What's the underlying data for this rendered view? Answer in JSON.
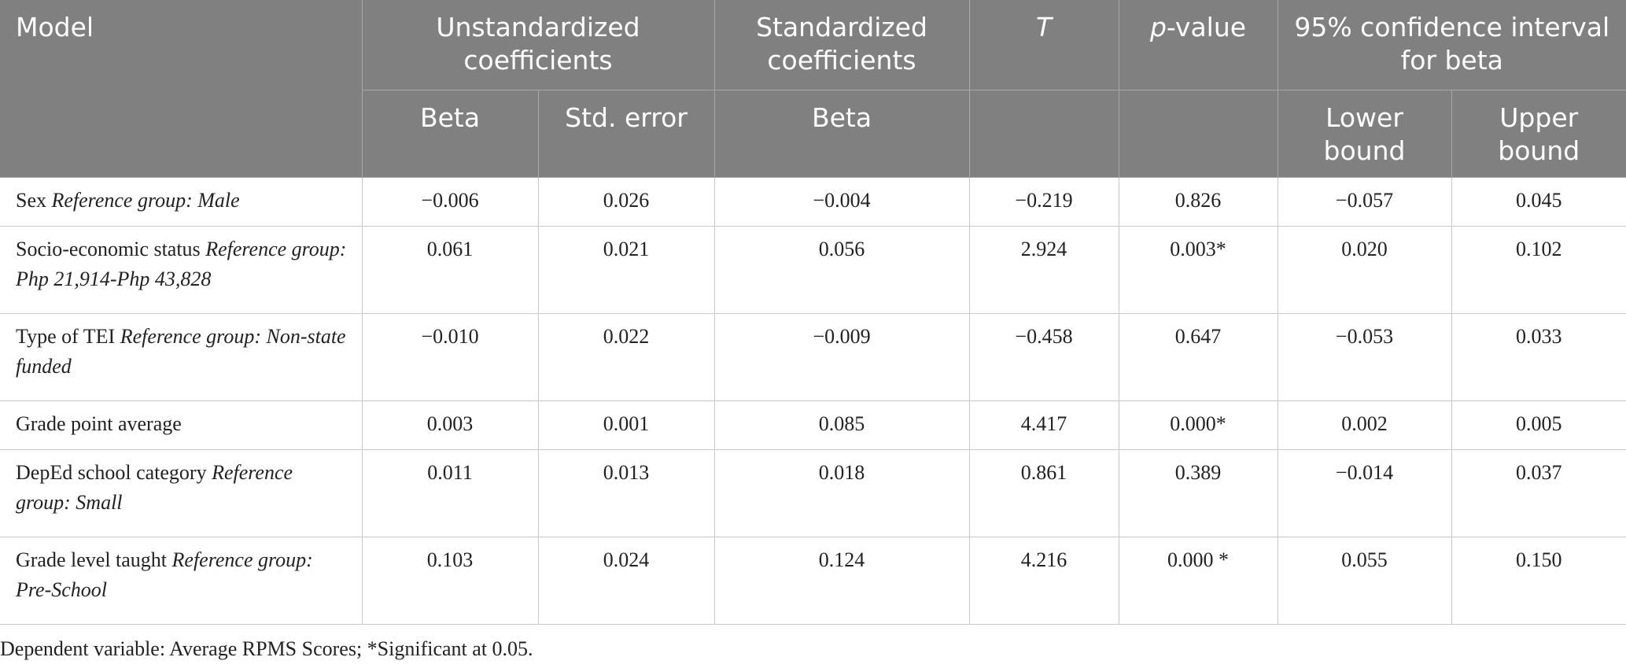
{
  "header": {
    "model": "Model",
    "unstandardized": "Unstandardized coefficients",
    "standardized": "Standardized coefficients",
    "t": "T",
    "p_italic": "p",
    "p_rest": "-value",
    "ci": "95% confidence interval for beta",
    "beta": "Beta",
    "std_error": "Std. error",
    "std_beta": "Beta",
    "lower": "Lower bound",
    "upper": "Upper bound"
  },
  "rows": [
    {
      "name": "Sex",
      "ref": "Reference group: Male",
      "b": "−0.006",
      "se": "0.026",
      "beta": "−0.004",
      "t": "−0.219",
      "p": "0.826",
      "lo": "−0.057",
      "hi": "0.045"
    },
    {
      "name": "Socio-economic status",
      "ref": "Reference group: Php 21,914-Php 43,828",
      "b": "0.061",
      "se": "0.021",
      "beta": "0.056",
      "t": "2.924",
      "p": "0.003*",
      "lo": "0.020",
      "hi": "0.102"
    },
    {
      "name": "Type of TEI",
      "ref": "Reference group: Non-state funded",
      "b": "−0.010",
      "se": "0.022",
      "beta": "−0.009",
      "t": "−0.458",
      "p": "0.647",
      "lo": "−0.053",
      "hi": "0.033"
    },
    {
      "name": "Grade point average",
      "ref": "",
      "b": "0.003",
      "se": "0.001",
      "beta": "0.085",
      "t": "4.417",
      "p": "0.000*",
      "lo": "0.002",
      "hi": "0.005"
    },
    {
      "name": "DepEd school category",
      "ref": "Reference group: Small",
      "b": "0.011",
      "se": "0.013",
      "beta": "0.018",
      "t": "0.861",
      "p": "0.389",
      "lo": "−0.014",
      "hi": "0.037"
    },
    {
      "name": "Grade level taught",
      "ref": "Reference group: Pre-School",
      "b": "0.103",
      "se": "0.024",
      "beta": "0.124",
      "t": "4.216",
      "p": "0.000 *",
      "lo": "0.055",
      "hi": "0.150"
    }
  ],
  "footnote": "Dependent variable: Average RPMS Scores; *Significant at 0.05."
}
